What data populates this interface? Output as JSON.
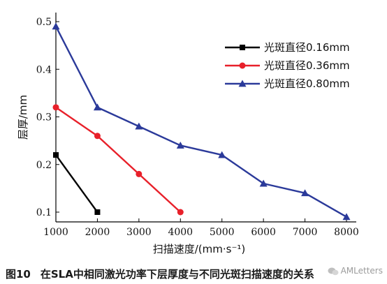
{
  "chart_data": {
    "type": "line",
    "title": "",
    "xlabel": "扫描速度/(mm·s⁻¹)",
    "ylabel": "层厚/mm",
    "xlim": [
      1000,
      8000
    ],
    "ylim": [
      0.1,
      0.5
    ],
    "x_ticks": [
      1000,
      2000,
      3000,
      4000,
      5000,
      6000,
      7000,
      8000
    ],
    "y_ticks": [
      0.1,
      0.2,
      0.3,
      0.4,
      0.5
    ],
    "x_tick_labels": [
      "1000",
      "2000",
      "3000",
      "4000",
      "5000",
      "6000",
      "7000",
      "8000"
    ],
    "y_tick_labels": [
      "0.1",
      "0.2",
      "0.3",
      "0.4",
      "0.5"
    ],
    "grid": false,
    "legend_position": "top-right",
    "series": [
      {
        "name": "光斑直径0.16mm",
        "color": "#000000",
        "marker": "square",
        "x": [
          1000,
          2000
        ],
        "y": [
          0.22,
          0.1
        ]
      },
      {
        "name": "光斑直径0.36mm",
        "color": "#e8202a",
        "marker": "circle",
        "x": [
          1000,
          2000,
          3000,
          4000
        ],
        "y": [
          0.32,
          0.26,
          0.18,
          0.1
        ]
      },
      {
        "name": "光斑直径0.80mm",
        "color": "#2b3a9a",
        "marker": "triangle",
        "x": [
          1000,
          2000,
          3000,
          4000,
          5000,
          6000,
          7000,
          8000
        ],
        "y": [
          0.49,
          0.32,
          0.28,
          0.24,
          0.22,
          0.16,
          0.14,
          0.09
        ]
      }
    ]
  },
  "caption": {
    "figure_number": "图10",
    "text": "在SLA中相同激光功率下层厚度与不同光斑扫描速度的关系"
  },
  "watermark": {
    "text": "AMLetters"
  }
}
